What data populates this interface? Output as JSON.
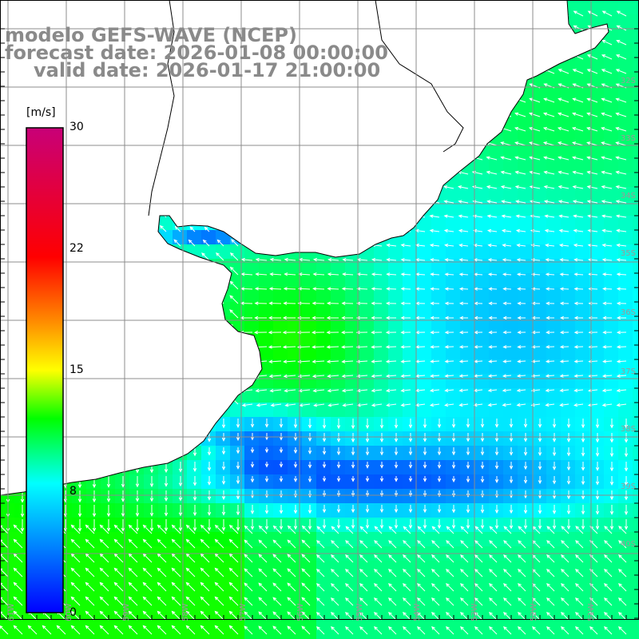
{
  "title": {
    "line1": "modelo GEFS-WAVE (NCEP)",
    "line2": "forecast date: 2026-01-08 00:00:00",
    "line3": "valid date: 2026-01-17 21:00:00"
  },
  "colorbar": {
    "unit": "[m/s]",
    "min": 0,
    "max": 30,
    "ticks": [
      "30",
      "22",
      "15",
      "8",
      "0"
    ],
    "stops": [
      "#0000ff",
      "#00ffff",
      "#00ff00",
      "#ffff00",
      "#ff8c00",
      "#ff0000",
      "#c80078"
    ]
  },
  "grid": {
    "lat_labels": [
      "32S",
      "33S",
      "34S",
      "35S",
      "36S",
      "37S",
      "38S",
      "39S",
      "40S"
    ],
    "lon_labels": [
      "61W",
      "60W",
      "59W",
      "58W",
      "57W",
      "56W",
      "55W",
      "54W",
      "53W",
      "52W",
      "51W"
    ]
  },
  "colors": {
    "land": "#ffffff",
    "coast": "#000000",
    "grid": "#8c8c8c",
    "title": "#8a8a8a",
    "arrow": "#ffffff"
  }
}
